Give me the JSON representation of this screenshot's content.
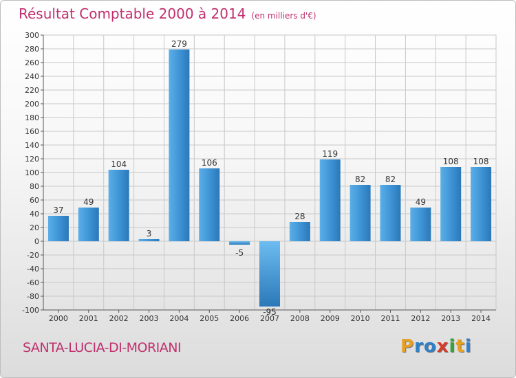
{
  "title": "Résultat Comptable 2000 à 2014",
  "subtitle": "(en milliers d'€)",
  "commune": "SANTA-LUCIA-DI-MORIANI",
  "logo": {
    "letters": [
      "P",
      "r",
      "o",
      "x",
      "i",
      "t",
      "i"
    ],
    "colors": [
      "#e8a020",
      "#2f80c8",
      "#2f80c8",
      "#d63a2a",
      "#3aa040",
      "#e8a020",
      "#2f80c8"
    ]
  },
  "colors": {
    "title": "#c0306e",
    "bar_light": "#5aafe8",
    "bar_dark": "#2b78b8",
    "grid": "#c8c8c8"
  },
  "chart_data": {
    "type": "bar",
    "title": "Résultat Comptable 2000 à 2014",
    "xlabel": "",
    "ylabel": "",
    "categories": [
      "2000",
      "2001",
      "2002",
      "2003",
      "2004",
      "2005",
      "2006",
      "2007",
      "2008",
      "2009",
      "2010",
      "2011",
      "2012",
      "2013",
      "2014"
    ],
    "values": [
      37,
      49,
      104,
      3,
      279,
      106,
      -5,
      -95,
      28,
      119,
      82,
      82,
      49,
      108,
      108
    ],
    "ylim": [
      -100,
      300
    ],
    "yticks": [
      300,
      280,
      260,
      240,
      220,
      200,
      180,
      160,
      140,
      120,
      100,
      80,
      60,
      40,
      20,
      0,
      -20,
      -40,
      -60,
      -80,
      -100
    ],
    "grid": true
  }
}
